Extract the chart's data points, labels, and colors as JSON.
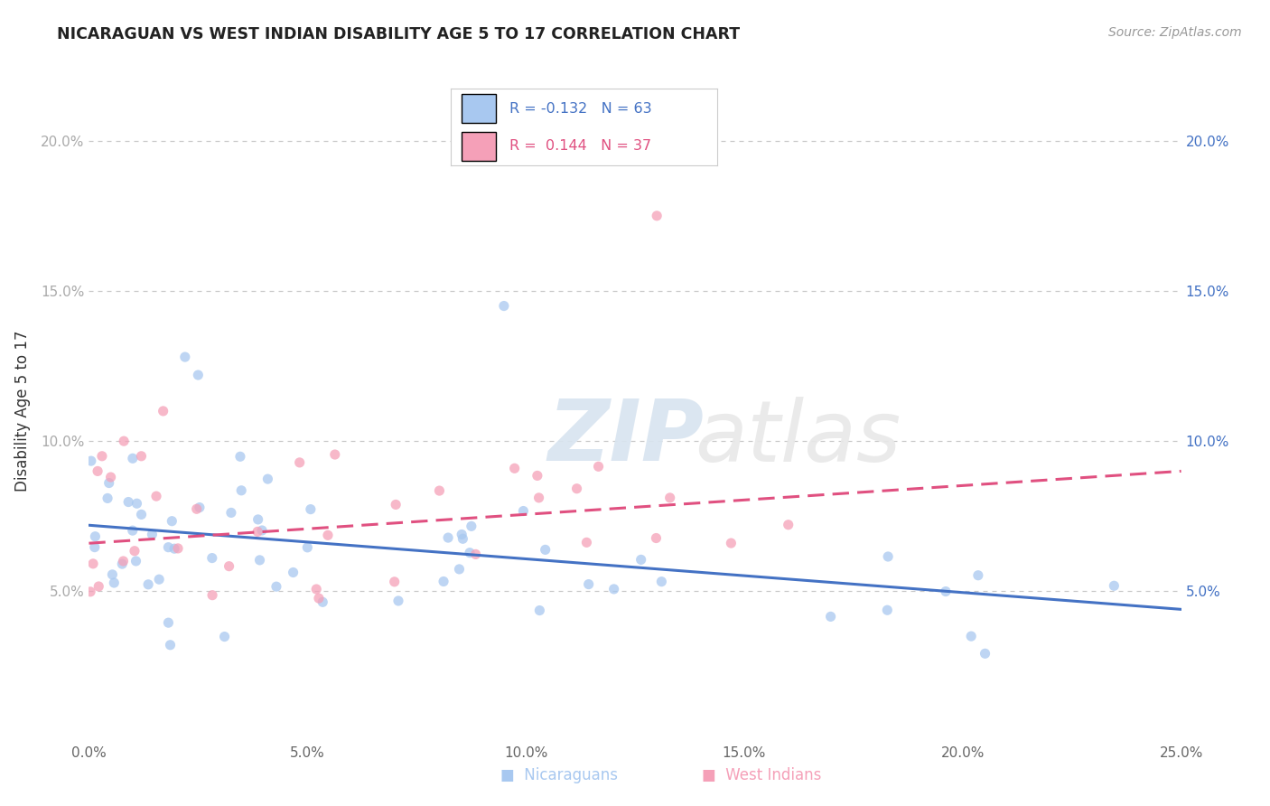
{
  "title": "NICARAGUAN VS WEST INDIAN DISABILITY AGE 5 TO 17 CORRELATION CHART",
  "source": "Source: ZipAtlas.com",
  "ylabel": "Disability Age 5 to 17",
  "xlim": [
    0.0,
    0.25
  ],
  "ylim": [
    0.0,
    0.22
  ],
  "xticks": [
    0.0,
    0.05,
    0.1,
    0.15,
    0.2,
    0.25
  ],
  "xticklabels": [
    "0.0%",
    "5.0%",
    "10.0%",
    "15.0%",
    "20.0%",
    "25.0%"
  ],
  "ytick_positions": [
    0.05,
    0.1,
    0.15,
    0.2
  ],
  "yticklabels": [
    "5.0%",
    "10.0%",
    "15.0%",
    "20.0%"
  ],
  "legend_r_nicaraguan": "-0.132",
  "legend_n_nicaraguan": "63",
  "legend_r_west_indian": "0.144",
  "legend_n_west_indian": "37",
  "color_nicaraguan": "#a8c8f0",
  "color_west_indian": "#f5a0b8",
  "trendline_color_nicaraguan": "#4472c4",
  "trendline_color_west_indian": "#e05080",
  "background_color": "#ffffff",
  "grid_color": "#c8c8c8",
  "watermark_zip": "ZIP",
  "watermark_atlas": "atlas",
  "nic_trend_start_y": 0.072,
  "nic_trend_end_y": 0.044,
  "wi_trend_start_y": 0.066,
  "wi_trend_end_y": 0.09
}
